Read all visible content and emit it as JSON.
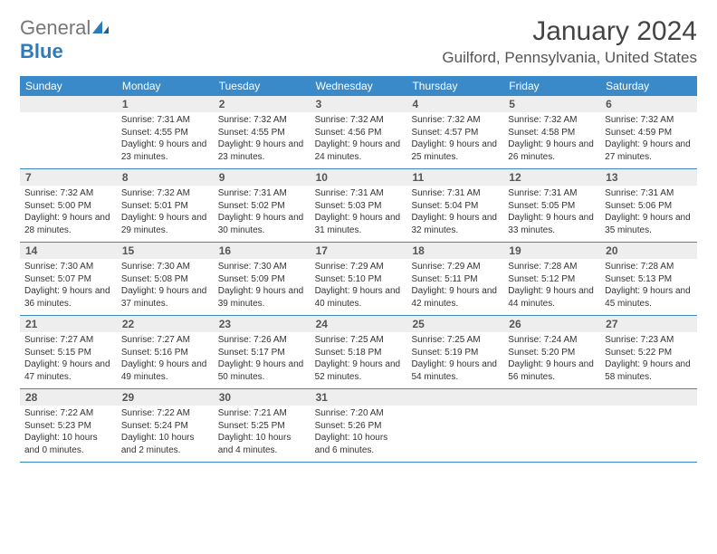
{
  "brand": {
    "part1": "General",
    "part2": "Blue"
  },
  "title": "January 2024",
  "location": "Guilford, Pennsylvania, United States",
  "colors": {
    "header_bg": "#3a89c9",
    "header_text": "#ffffff",
    "daynum_bg": "#eeeeee",
    "rule": "#3a89c9",
    "text": "#333333"
  },
  "day_labels": [
    "Sunday",
    "Monday",
    "Tuesday",
    "Wednesday",
    "Thursday",
    "Friday",
    "Saturday"
  ],
  "weeks": [
    [
      {
        "n": "",
        "sunrise": "",
        "sunset": "",
        "daylight": ""
      },
      {
        "n": "1",
        "sunrise": "Sunrise: 7:31 AM",
        "sunset": "Sunset: 4:55 PM",
        "daylight": "Daylight: 9 hours and 23 minutes."
      },
      {
        "n": "2",
        "sunrise": "Sunrise: 7:32 AM",
        "sunset": "Sunset: 4:55 PM",
        "daylight": "Daylight: 9 hours and 23 minutes."
      },
      {
        "n": "3",
        "sunrise": "Sunrise: 7:32 AM",
        "sunset": "Sunset: 4:56 PM",
        "daylight": "Daylight: 9 hours and 24 minutes."
      },
      {
        "n": "4",
        "sunrise": "Sunrise: 7:32 AM",
        "sunset": "Sunset: 4:57 PM",
        "daylight": "Daylight: 9 hours and 25 minutes."
      },
      {
        "n": "5",
        "sunrise": "Sunrise: 7:32 AM",
        "sunset": "Sunset: 4:58 PM",
        "daylight": "Daylight: 9 hours and 26 minutes."
      },
      {
        "n": "6",
        "sunrise": "Sunrise: 7:32 AM",
        "sunset": "Sunset: 4:59 PM",
        "daylight": "Daylight: 9 hours and 27 minutes."
      }
    ],
    [
      {
        "n": "7",
        "sunrise": "Sunrise: 7:32 AM",
        "sunset": "Sunset: 5:00 PM",
        "daylight": "Daylight: 9 hours and 28 minutes."
      },
      {
        "n": "8",
        "sunrise": "Sunrise: 7:32 AM",
        "sunset": "Sunset: 5:01 PM",
        "daylight": "Daylight: 9 hours and 29 minutes."
      },
      {
        "n": "9",
        "sunrise": "Sunrise: 7:31 AM",
        "sunset": "Sunset: 5:02 PM",
        "daylight": "Daylight: 9 hours and 30 minutes."
      },
      {
        "n": "10",
        "sunrise": "Sunrise: 7:31 AM",
        "sunset": "Sunset: 5:03 PM",
        "daylight": "Daylight: 9 hours and 31 minutes."
      },
      {
        "n": "11",
        "sunrise": "Sunrise: 7:31 AM",
        "sunset": "Sunset: 5:04 PM",
        "daylight": "Daylight: 9 hours and 32 minutes."
      },
      {
        "n": "12",
        "sunrise": "Sunrise: 7:31 AM",
        "sunset": "Sunset: 5:05 PM",
        "daylight": "Daylight: 9 hours and 33 minutes."
      },
      {
        "n": "13",
        "sunrise": "Sunrise: 7:31 AM",
        "sunset": "Sunset: 5:06 PM",
        "daylight": "Daylight: 9 hours and 35 minutes."
      }
    ],
    [
      {
        "n": "14",
        "sunrise": "Sunrise: 7:30 AM",
        "sunset": "Sunset: 5:07 PM",
        "daylight": "Daylight: 9 hours and 36 minutes."
      },
      {
        "n": "15",
        "sunrise": "Sunrise: 7:30 AM",
        "sunset": "Sunset: 5:08 PM",
        "daylight": "Daylight: 9 hours and 37 minutes."
      },
      {
        "n": "16",
        "sunrise": "Sunrise: 7:30 AM",
        "sunset": "Sunset: 5:09 PM",
        "daylight": "Daylight: 9 hours and 39 minutes."
      },
      {
        "n": "17",
        "sunrise": "Sunrise: 7:29 AM",
        "sunset": "Sunset: 5:10 PM",
        "daylight": "Daylight: 9 hours and 40 minutes."
      },
      {
        "n": "18",
        "sunrise": "Sunrise: 7:29 AM",
        "sunset": "Sunset: 5:11 PM",
        "daylight": "Daylight: 9 hours and 42 minutes."
      },
      {
        "n": "19",
        "sunrise": "Sunrise: 7:28 AM",
        "sunset": "Sunset: 5:12 PM",
        "daylight": "Daylight: 9 hours and 44 minutes."
      },
      {
        "n": "20",
        "sunrise": "Sunrise: 7:28 AM",
        "sunset": "Sunset: 5:13 PM",
        "daylight": "Daylight: 9 hours and 45 minutes."
      }
    ],
    [
      {
        "n": "21",
        "sunrise": "Sunrise: 7:27 AM",
        "sunset": "Sunset: 5:15 PM",
        "daylight": "Daylight: 9 hours and 47 minutes."
      },
      {
        "n": "22",
        "sunrise": "Sunrise: 7:27 AM",
        "sunset": "Sunset: 5:16 PM",
        "daylight": "Daylight: 9 hours and 49 minutes."
      },
      {
        "n": "23",
        "sunrise": "Sunrise: 7:26 AM",
        "sunset": "Sunset: 5:17 PM",
        "daylight": "Daylight: 9 hours and 50 minutes."
      },
      {
        "n": "24",
        "sunrise": "Sunrise: 7:25 AM",
        "sunset": "Sunset: 5:18 PM",
        "daylight": "Daylight: 9 hours and 52 minutes."
      },
      {
        "n": "25",
        "sunrise": "Sunrise: 7:25 AM",
        "sunset": "Sunset: 5:19 PM",
        "daylight": "Daylight: 9 hours and 54 minutes."
      },
      {
        "n": "26",
        "sunrise": "Sunrise: 7:24 AM",
        "sunset": "Sunset: 5:20 PM",
        "daylight": "Daylight: 9 hours and 56 minutes."
      },
      {
        "n": "27",
        "sunrise": "Sunrise: 7:23 AM",
        "sunset": "Sunset: 5:22 PM",
        "daylight": "Daylight: 9 hours and 58 minutes."
      }
    ],
    [
      {
        "n": "28",
        "sunrise": "Sunrise: 7:22 AM",
        "sunset": "Sunset: 5:23 PM",
        "daylight": "Daylight: 10 hours and 0 minutes."
      },
      {
        "n": "29",
        "sunrise": "Sunrise: 7:22 AM",
        "sunset": "Sunset: 5:24 PM",
        "daylight": "Daylight: 10 hours and 2 minutes."
      },
      {
        "n": "30",
        "sunrise": "Sunrise: 7:21 AM",
        "sunset": "Sunset: 5:25 PM",
        "daylight": "Daylight: 10 hours and 4 minutes."
      },
      {
        "n": "31",
        "sunrise": "Sunrise: 7:20 AM",
        "sunset": "Sunset: 5:26 PM",
        "daylight": "Daylight: 10 hours and 6 minutes."
      },
      {
        "n": "",
        "sunrise": "",
        "sunset": "",
        "daylight": ""
      },
      {
        "n": "",
        "sunrise": "",
        "sunset": "",
        "daylight": ""
      },
      {
        "n": "",
        "sunrise": "",
        "sunset": "",
        "daylight": ""
      }
    ]
  ]
}
